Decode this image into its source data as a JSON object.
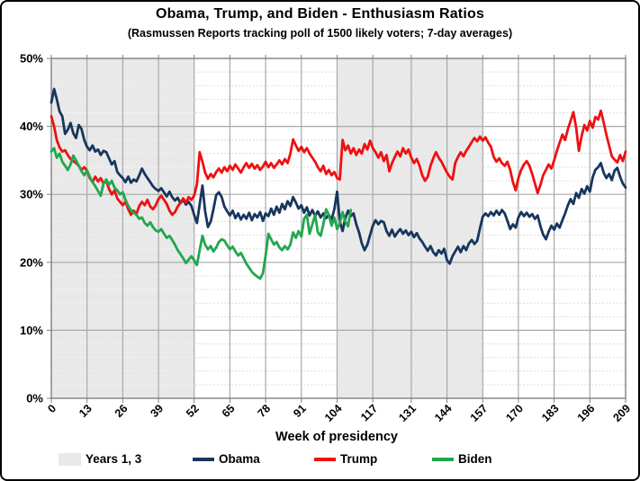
{
  "chart_data": {
    "type": "line",
    "title": "Obama, Trump, and Biden - Enthusiasm Ratios",
    "subtitle": "(Rasmussen Reports tracking poll of 1500 likely voters; 7-day averages)",
    "xlabel": "Week of presidency",
    "ylabel": "",
    "xlim": [
      0,
      209
    ],
    "ylim": [
      0,
      50
    ],
    "grid": {
      "major_vertical": true,
      "major_horizontal": true,
      "minor_horizontal_step": 2
    },
    "x_ticks": [
      0,
      13,
      26,
      39,
      52,
      65,
      78,
      91,
      104,
      117,
      131,
      144,
      157,
      170,
      183,
      196,
      209
    ],
    "y_ticks": [
      {
        "value": 50,
        "label": "50%"
      },
      {
        "value": 40,
        "label": "40%"
      },
      {
        "value": 30,
        "label": "30%"
      },
      {
        "value": 20,
        "label": "20%"
      },
      {
        "value": 10,
        "label": "10%"
      },
      {
        "value": 0,
        "label": "0%"
      }
    ],
    "shaded_regions": {
      "label": "Years 1, 3",
      "color": "#e9e9e9",
      "ranges": [
        [
          0,
          52
        ],
        [
          104,
          157
        ]
      ]
    },
    "series": [
      {
        "name": "Obama",
        "color": "#17365d",
        "start_week": 0,
        "values": [
          43.5,
          45.5,
          44.0,
          42.2,
          41.5,
          38.9,
          39.5,
          40.5,
          39.0,
          38.3,
          40.2,
          39.6,
          38.0,
          37.0,
          36.5,
          37.2,
          36.3,
          36.6,
          35.8,
          36.4,
          36.2,
          35.3,
          34.4,
          34.9,
          33.3,
          32.8,
          32.4,
          31.8,
          32.6,
          31.7,
          32.2,
          31.9,
          32.8,
          33.8,
          33.0,
          32.4,
          31.8,
          31.2,
          30.8,
          30.5,
          30.9,
          30.3,
          29.7,
          30.4,
          29.6,
          29.1,
          29.5,
          28.7,
          29.2,
          28.5,
          28.9,
          28.3,
          27.0,
          25.8,
          28.5,
          31.3,
          27.5,
          25.2,
          26.0,
          27.8,
          29.9,
          30.3,
          29.6,
          28.2,
          27.5,
          26.9,
          27.6,
          26.5,
          27.2,
          26.3,
          27.0,
          26.4,
          27.3,
          26.2,
          27.1,
          26.6,
          27.4,
          26.1,
          27.2,
          26.8,
          27.9,
          27.0,
          28.2,
          27.3,
          28.6,
          27.8,
          29.0,
          28.3,
          29.6,
          28.8,
          27.9,
          28.4,
          27.3,
          28.1,
          26.9,
          27.7,
          26.8,
          27.5,
          26.6,
          27.2,
          26.5,
          27.0,
          26.3,
          27.8,
          30.4,
          26.0,
          24.6,
          26.5,
          27.6,
          26.8,
          27.2,
          25.6,
          24.4,
          22.8,
          21.8,
          22.6,
          24.0,
          25.4,
          26.2,
          25.6,
          26.1,
          25.9,
          24.6,
          23.9,
          24.8,
          23.8,
          24.4,
          24.9,
          24.2,
          24.7,
          24.0,
          24.5,
          23.7,
          24.3,
          23.5,
          23.0,
          22.3,
          21.7,
          22.4,
          21.5,
          21.0,
          21.8,
          21.3,
          22.0,
          20.3,
          19.8,
          20.9,
          21.6,
          22.3,
          21.5,
          22.4,
          21.8,
          22.8,
          23.3,
          22.7,
          23.2,
          25.0,
          26.7,
          27.2,
          26.8,
          27.4,
          26.9,
          27.6,
          27.0,
          27.7,
          27.2,
          26.1,
          24.9,
          25.6,
          25.1,
          26.6,
          27.4,
          26.8,
          27.3,
          26.7,
          27.1,
          26.4,
          26.9,
          25.3,
          24.1,
          23.4,
          24.5,
          25.4,
          24.8,
          25.7,
          25.1,
          26.2,
          27.2,
          28.4,
          29.3,
          28.6,
          30.2,
          29.5,
          30.8,
          30.1,
          31.2,
          30.4,
          32.5,
          33.6,
          34.0,
          34.6,
          33.2,
          32.4,
          33.0,
          32.1,
          33.5,
          33.9,
          32.6,
          31.6,
          31.0
        ]
      },
      {
        "name": "Trump",
        "color": "#ee1111",
        "start_week": 0,
        "values": [
          41.5,
          40.0,
          38.0,
          36.9,
          36.3,
          36.5,
          35.8,
          35.2,
          34.9,
          34.6,
          34.2,
          33.6,
          34.0,
          33.5,
          32.4,
          31.8,
          32.6,
          31.9,
          32.4,
          31.6,
          32.0,
          30.8,
          30.0,
          30.6,
          29.4,
          28.9,
          28.4,
          28.9,
          27.8,
          27.0,
          27.6,
          27.1,
          28.3,
          28.9,
          28.4,
          29.2,
          28.2,
          27.8,
          28.4,
          29.3,
          29.8,
          29.2,
          28.6,
          27.6,
          27.0,
          27.4,
          28.2,
          28.8,
          29.4,
          28.8,
          29.6,
          29.2,
          29.8,
          31.5,
          36.2,
          34.8,
          33.2,
          32.3,
          33.0,
          32.5,
          33.3,
          33.8,
          33.2,
          34.0,
          33.4,
          34.2,
          33.6,
          34.4,
          33.8,
          33.2,
          34.0,
          34.6,
          33.9,
          34.5,
          33.8,
          34.3,
          33.6,
          34.1,
          34.8,
          34.0,
          34.6,
          33.9,
          34.4,
          35.0,
          34.4,
          35.2,
          34.6,
          36.0,
          38.1,
          37.2,
          36.4,
          37.0,
          36.2,
          36.8,
          36.0,
          35.4,
          34.8,
          34.0,
          33.4,
          34.2,
          33.0,
          33.6,
          32.8,
          33.3,
          32.4,
          32.2,
          38.0,
          36.5,
          37.2,
          36.0,
          36.8,
          35.8,
          36.6,
          36.0,
          37.4,
          36.6,
          37.9,
          36.8,
          36.2,
          35.4,
          36.2,
          34.9,
          35.8,
          33.4,
          34.6,
          35.5,
          36.3,
          35.6,
          36.8,
          36.0,
          36.6,
          35.4,
          34.6,
          35.2,
          34.2,
          32.8,
          32.0,
          32.6,
          34.2,
          35.3,
          36.2,
          35.4,
          34.8,
          34.0,
          33.2,
          32.6,
          32.2,
          34.6,
          35.5,
          36.2,
          35.6,
          36.4,
          37.0,
          37.7,
          38.3,
          37.8,
          38.5,
          37.9,
          38.4,
          37.6,
          37.0,
          35.5,
          34.8,
          35.3,
          34.6,
          34.2,
          34.8,
          33.6,
          31.8,
          30.6,
          32.4,
          33.6,
          34.4,
          34.9,
          34.2,
          33.0,
          31.6,
          30.2,
          31.4,
          32.8,
          33.6,
          34.4,
          33.8,
          35.0,
          36.4,
          37.6,
          38.8,
          38.0,
          39.6,
          40.8,
          42.1,
          39.8,
          36.4,
          38.6,
          40.2,
          39.4,
          40.8,
          39.8,
          41.4,
          41.0,
          42.3,
          40.6,
          38.8,
          37.2,
          35.6,
          35.1,
          34.7,
          35.8,
          34.9,
          36.3
        ]
      },
      {
        "name": "Biden",
        "color": "#21a74d",
        "start_week": 0,
        "values": [
          36.3,
          36.8,
          35.4,
          36.0,
          34.8,
          34.2,
          33.6,
          34.4,
          35.7,
          35.0,
          34.2,
          33.4,
          32.8,
          33.5,
          32.6,
          31.8,
          31.2,
          30.5,
          29.8,
          31.6,
          32.2,
          31.4,
          32.0,
          31.0,
          30.6,
          30.0,
          30.3,
          29.2,
          28.3,
          27.7,
          27.3,
          27.0,
          26.4,
          26.6,
          25.8,
          25.4,
          25.9,
          25.2,
          24.7,
          24.5,
          24.9,
          24.2,
          23.6,
          23.9,
          23.3,
          22.6,
          21.8,
          21.2,
          20.6,
          19.9,
          20.4,
          20.9,
          20.3,
          19.6,
          21.8,
          23.9,
          22.6,
          21.9,
          22.4,
          21.6,
          22.2,
          23.0,
          23.4,
          23.2,
          22.5,
          21.9,
          22.3,
          21.6,
          21.0,
          21.4,
          20.6,
          19.8,
          19.2,
          18.6,
          18.2,
          17.9,
          17.6,
          18.4,
          21.0,
          24.2,
          23.4,
          22.6,
          23.0,
          22.2,
          21.8,
          22.4,
          21.9,
          22.6,
          24.4,
          23.6,
          24.6,
          23.8,
          26.4,
          27.0,
          24.2,
          25.6,
          27.0,
          24.4,
          23.9,
          25.6,
          27.8,
          27.0,
          25.4,
          26.6,
          24.9,
          25.8,
          27.4,
          26.0,
          25.3,
          27.7
        ]
      }
    ],
    "legend": {
      "position": "bottom",
      "items": [
        {
          "label": "Years 1, 3",
          "type": "area",
          "color": "#e9e9e9"
        },
        {
          "label": "Obama",
          "type": "line",
          "color": "#17365d"
        },
        {
          "label": "Trump",
          "type": "line",
          "color": "#ee1111"
        },
        {
          "label": "Biden",
          "type": "line",
          "color": "#21a74d"
        }
      ]
    }
  }
}
